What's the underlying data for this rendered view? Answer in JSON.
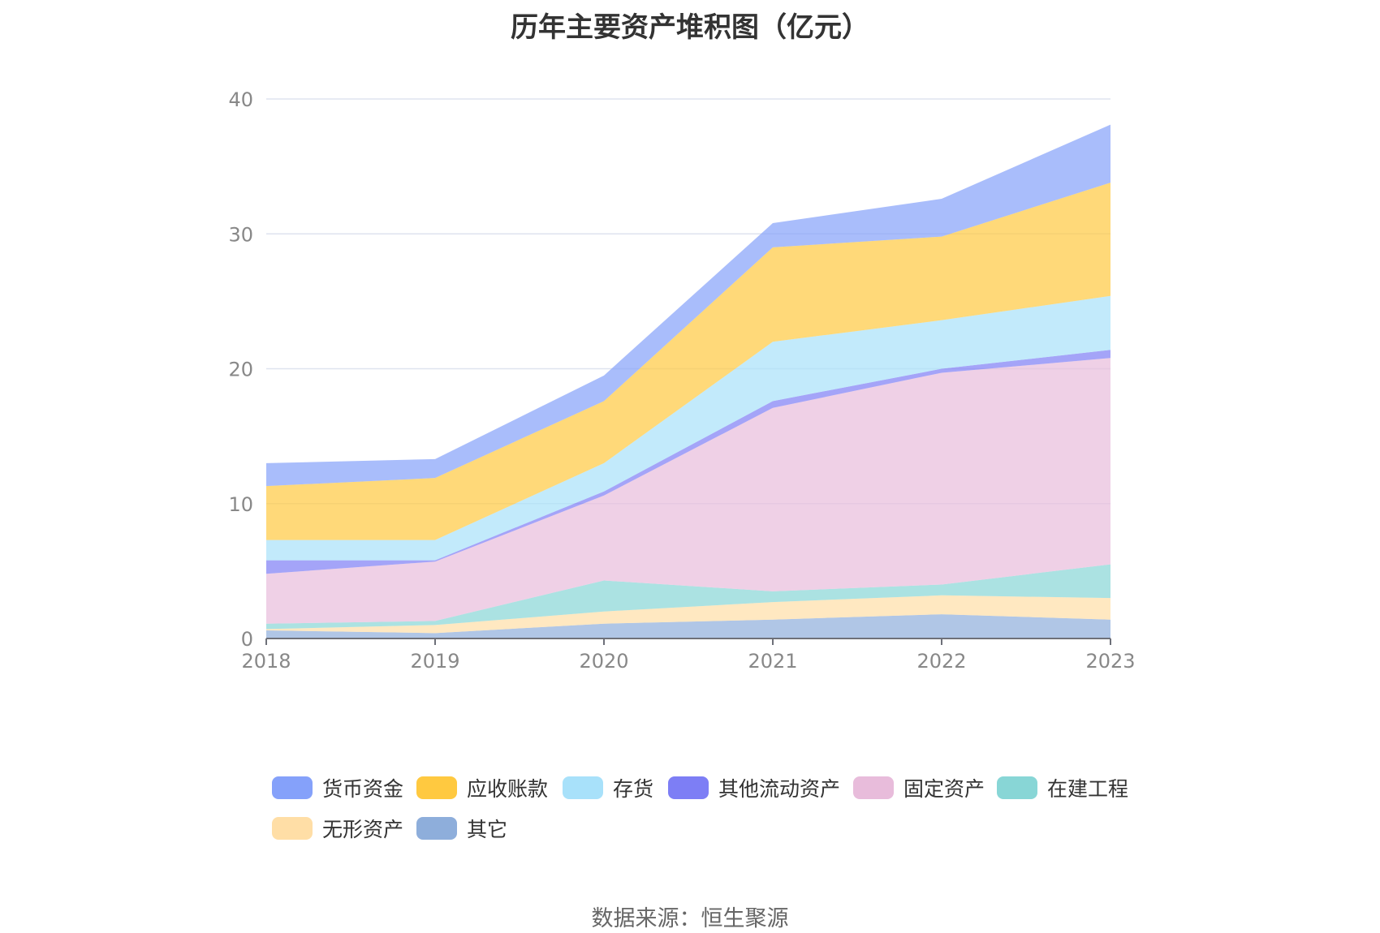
{
  "title": "历年主要资产堆积图（亿元）",
  "source": "数据来源：恒生聚源",
  "chart_data": {
    "type": "area",
    "stacked": true,
    "categories": [
      "2018",
      "2019",
      "2020",
      "2021",
      "2022",
      "2023"
    ],
    "ylim": [
      0,
      40
    ],
    "yticks": [
      0,
      10,
      20,
      30,
      40
    ],
    "grid": true,
    "legend_position": "bottom",
    "series": [
      {
        "name": "其它",
        "color": "#8eaedb",
        "values": [
          0.6,
          0.4,
          1.1,
          1.4,
          1.8,
          1.4
        ]
      },
      {
        "name": "无形资产",
        "color": "#ffdea6",
        "values": [
          0.1,
          0.6,
          0.9,
          1.3,
          1.4,
          1.6
        ]
      },
      {
        "name": "在建工程",
        "color": "#88d6d6",
        "values": [
          0.4,
          0.3,
          2.3,
          0.8,
          0.8,
          2.5
        ]
      },
      {
        "name": "固定资产",
        "color": "#e8bcdb",
        "values": [
          3.7,
          4.4,
          6.3,
          13.6,
          15.7,
          15.3
        ]
      },
      {
        "name": "其他流动资产",
        "color": "#7d7ef5",
        "values": [
          1.0,
          0.1,
          0.3,
          0.5,
          0.3,
          0.6
        ]
      },
      {
        "name": "存货",
        "color": "#a8e1fa",
        "values": [
          1.5,
          1.5,
          2.1,
          4.4,
          3.6,
          4.0
        ]
      },
      {
        "name": "应收账款",
        "color": "#ffc940",
        "values": [
          4.0,
          4.6,
          4.6,
          7.0,
          6.2,
          8.4
        ]
      },
      {
        "name": "货币资金",
        "color": "#85a1fa",
        "values": [
          1.7,
          1.4,
          1.9,
          1.8,
          2.8,
          4.3
        ]
      }
    ],
    "legend": [
      {
        "name": "货币资金",
        "color": "#85a1fa"
      },
      {
        "name": "应收账款",
        "color": "#ffc940"
      },
      {
        "name": "存货",
        "color": "#a8e1fa"
      },
      {
        "name": "其他流动资产",
        "color": "#7d7ef5"
      },
      {
        "name": "固定资产",
        "color": "#e8bcdb"
      },
      {
        "name": "在建工程",
        "color": "#88d6d6"
      },
      {
        "name": "无形资产",
        "color": "#ffdea6"
      },
      {
        "name": "其它",
        "color": "#8eaedb"
      }
    ]
  }
}
